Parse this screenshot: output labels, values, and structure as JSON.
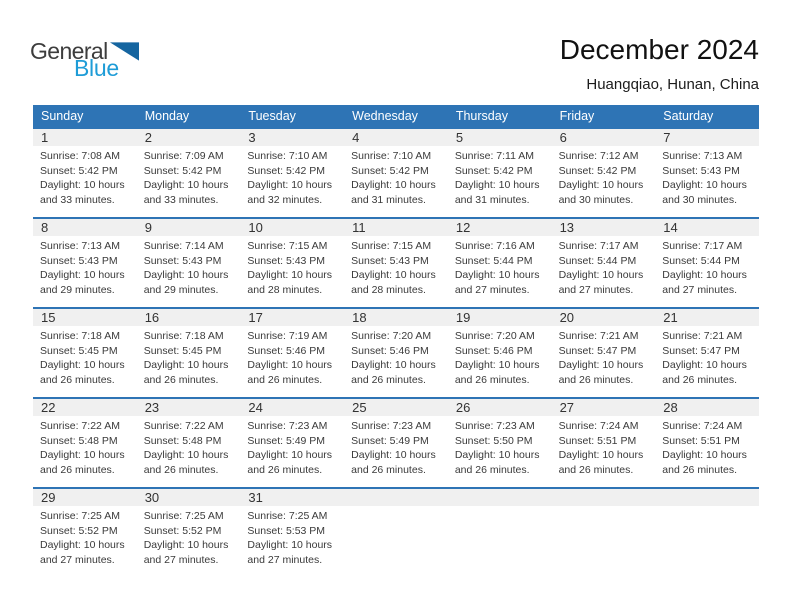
{
  "logo": {
    "text_top": "General",
    "text_bottom": "Blue"
  },
  "header": {
    "title": "December 2024",
    "location": "Huangqiao, Hunan, China"
  },
  "weekday_headers": [
    "Sunday",
    "Monday",
    "Tuesday",
    "Wednesday",
    "Thursday",
    "Friday",
    "Saturday"
  ],
  "labels": {
    "sunrise": "Sunrise:",
    "sunset": "Sunset:",
    "daylight": "Daylight:"
  },
  "colors": {
    "header_bar": "#2E74B5",
    "day_strip": "#F0F0F0",
    "logo_blue": "#1E9CD7",
    "logo_triangle": "#1565A0",
    "text": "#3A3A3A"
  },
  "weeks": [
    [
      {
        "day": "1",
        "sunrise": "7:08 AM",
        "sunset": "5:42 PM",
        "daylight": "10 hours and 33 minutes."
      },
      {
        "day": "2",
        "sunrise": "7:09 AM",
        "sunset": "5:42 PM",
        "daylight": "10 hours and 33 minutes."
      },
      {
        "day": "3",
        "sunrise": "7:10 AM",
        "sunset": "5:42 PM",
        "daylight": "10 hours and 32 minutes."
      },
      {
        "day": "4",
        "sunrise": "7:10 AM",
        "sunset": "5:42 PM",
        "daylight": "10 hours and 31 minutes."
      },
      {
        "day": "5",
        "sunrise": "7:11 AM",
        "sunset": "5:42 PM",
        "daylight": "10 hours and 31 minutes."
      },
      {
        "day": "6",
        "sunrise": "7:12 AM",
        "sunset": "5:42 PM",
        "daylight": "10 hours and 30 minutes."
      },
      {
        "day": "7",
        "sunrise": "7:13 AM",
        "sunset": "5:43 PM",
        "daylight": "10 hours and 30 minutes."
      }
    ],
    [
      {
        "day": "8",
        "sunrise": "7:13 AM",
        "sunset": "5:43 PM",
        "daylight": "10 hours and 29 minutes."
      },
      {
        "day": "9",
        "sunrise": "7:14 AM",
        "sunset": "5:43 PM",
        "daylight": "10 hours and 29 minutes."
      },
      {
        "day": "10",
        "sunrise": "7:15 AM",
        "sunset": "5:43 PM",
        "daylight": "10 hours and 28 minutes."
      },
      {
        "day": "11",
        "sunrise": "7:15 AM",
        "sunset": "5:43 PM",
        "daylight": "10 hours and 28 minutes."
      },
      {
        "day": "12",
        "sunrise": "7:16 AM",
        "sunset": "5:44 PM",
        "daylight": "10 hours and 27 minutes."
      },
      {
        "day": "13",
        "sunrise": "7:17 AM",
        "sunset": "5:44 PM",
        "daylight": "10 hours and 27 minutes."
      },
      {
        "day": "14",
        "sunrise": "7:17 AM",
        "sunset": "5:44 PM",
        "daylight": "10 hours and 27 minutes."
      }
    ],
    [
      {
        "day": "15",
        "sunrise": "7:18 AM",
        "sunset": "5:45 PM",
        "daylight": "10 hours and 26 minutes."
      },
      {
        "day": "16",
        "sunrise": "7:18 AM",
        "sunset": "5:45 PM",
        "daylight": "10 hours and 26 minutes."
      },
      {
        "day": "17",
        "sunrise": "7:19 AM",
        "sunset": "5:46 PM",
        "daylight": "10 hours and 26 minutes."
      },
      {
        "day": "18",
        "sunrise": "7:20 AM",
        "sunset": "5:46 PM",
        "daylight": "10 hours and 26 minutes."
      },
      {
        "day": "19",
        "sunrise": "7:20 AM",
        "sunset": "5:46 PM",
        "daylight": "10 hours and 26 minutes."
      },
      {
        "day": "20",
        "sunrise": "7:21 AM",
        "sunset": "5:47 PM",
        "daylight": "10 hours and 26 minutes."
      },
      {
        "day": "21",
        "sunrise": "7:21 AM",
        "sunset": "5:47 PM",
        "daylight": "10 hours and 26 minutes."
      }
    ],
    [
      {
        "day": "22",
        "sunrise": "7:22 AM",
        "sunset": "5:48 PM",
        "daylight": "10 hours and 26 minutes."
      },
      {
        "day": "23",
        "sunrise": "7:22 AM",
        "sunset": "5:48 PM",
        "daylight": "10 hours and 26 minutes."
      },
      {
        "day": "24",
        "sunrise": "7:23 AM",
        "sunset": "5:49 PM",
        "daylight": "10 hours and 26 minutes."
      },
      {
        "day": "25",
        "sunrise": "7:23 AM",
        "sunset": "5:49 PM",
        "daylight": "10 hours and 26 minutes."
      },
      {
        "day": "26",
        "sunrise": "7:23 AM",
        "sunset": "5:50 PM",
        "daylight": "10 hours and 26 minutes."
      },
      {
        "day": "27",
        "sunrise": "7:24 AM",
        "sunset": "5:51 PM",
        "daylight": "10 hours and 26 minutes."
      },
      {
        "day": "28",
        "sunrise": "7:24 AM",
        "sunset": "5:51 PM",
        "daylight": "10 hours and 26 minutes."
      }
    ],
    [
      {
        "day": "29",
        "sunrise": "7:25 AM",
        "sunset": "5:52 PM",
        "daylight": "10 hours and 27 minutes."
      },
      {
        "day": "30",
        "sunrise": "7:25 AM",
        "sunset": "5:52 PM",
        "daylight": "10 hours and 27 minutes."
      },
      {
        "day": "31",
        "sunrise": "7:25 AM",
        "sunset": "5:53 PM",
        "daylight": "10 hours and 27 minutes."
      },
      null,
      null,
      null,
      null
    ]
  ]
}
